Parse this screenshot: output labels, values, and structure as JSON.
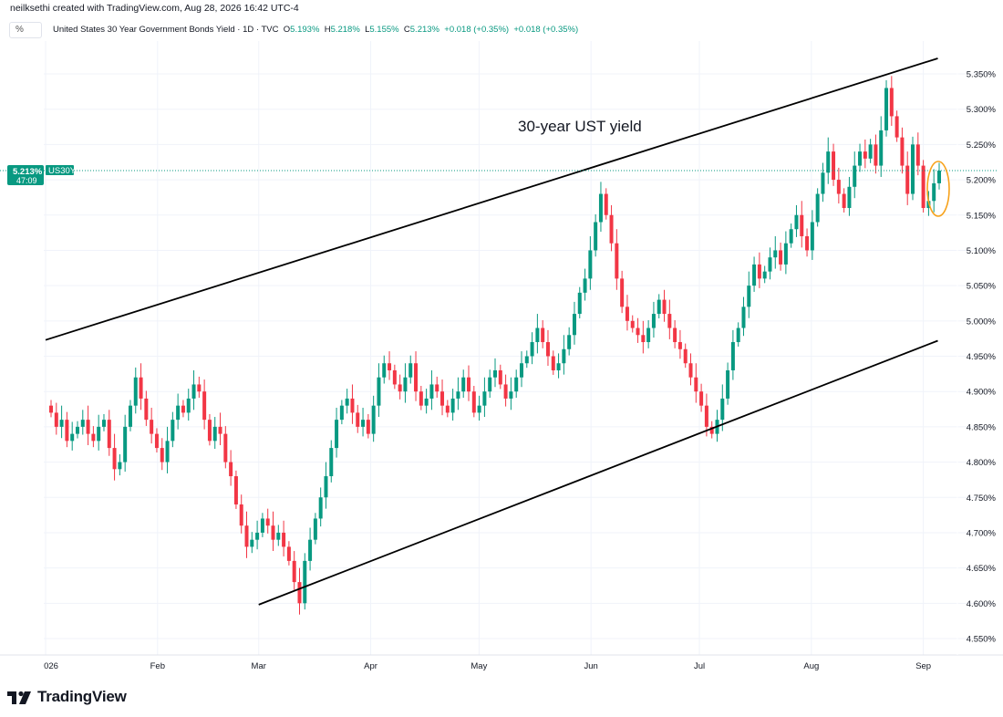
{
  "header": {
    "created_by": "neilksethi created with TradingView.com, Aug 28, 2026 16:42 UTC-4",
    "scale_button": "%",
    "symbol_title": "United States 30 Year Government Bonds Yield · 1D · TVC",
    "ohlc": {
      "open_label": "O",
      "open": "5.193%",
      "high_label": "H",
      "high": "5.218%",
      "low_label": "L",
      "low": "5.155%",
      "close_label": "C",
      "close": "5.213%",
      "change1": "+0.018 (+0.35%)",
      "change2": "+0.018 (+0.35%)"
    }
  },
  "price_tag": {
    "value": "5.213%",
    "countdown": "47:09",
    "symbol": "US30Y"
  },
  "annotation": "30-year UST yield",
  "footer": {
    "brand": "TradingView"
  },
  "colors": {
    "up": "#089981",
    "down": "#f23645",
    "channel": "#000000",
    "marker": "#f7a21b"
  },
  "chart_data": {
    "type": "candlestick",
    "title": "United States 30 Year Government Bonds Yield",
    "x_tick_labels": [
      "026",
      "Feb",
      "Mar",
      "Apr",
      "May",
      "Jun",
      "Jul",
      "Aug",
      "Sep"
    ],
    "y_tick_labels": [
      "5.350%",
      "5.300%",
      "5.250%",
      "5.200%",
      "5.150%",
      "5.100%",
      "5.050%",
      "5.000%",
      "4.950%",
      "4.900%",
      "4.850%",
      "4.800%",
      "4.750%",
      "4.700%",
      "4.650%",
      "4.600%",
      "4.550%"
    ],
    "ylim": [
      4.53,
      5.375
    ],
    "last_value": 5.213,
    "channel_lines": [
      {
        "from": [
          "2026-01-01",
          4.973
        ],
        "to": [
          "2026-09-05",
          5.372
        ]
      },
      {
        "from": [
          "2026-03-01",
          4.598
        ],
        "to": [
          "2026-09-05",
          4.972
        ]
      }
    ],
    "closes": [
      4.87,
      4.85,
      4.86,
      4.83,
      4.84,
      4.85,
      4.86,
      4.84,
      4.83,
      4.85,
      4.86,
      4.82,
      4.79,
      4.8,
      4.85,
      4.88,
      4.92,
      4.89,
      4.86,
      4.84,
      4.82,
      4.8,
      4.83,
      4.86,
      4.88,
      4.87,
      4.89,
      4.91,
      4.9,
      4.86,
      4.83,
      4.85,
      4.84,
      4.8,
      4.78,
      4.74,
      4.71,
      4.68,
      4.69,
      4.7,
      4.72,
      4.71,
      4.69,
      4.7,
      4.68,
      4.66,
      4.63,
      4.6,
      4.66,
      4.69,
      4.72,
      4.75,
      4.78,
      4.82,
      4.86,
      4.88,
      4.89,
      4.87,
      4.85,
      4.86,
      4.84,
      4.88,
      4.92,
      4.94,
      4.93,
      4.91,
      4.9,
      4.92,
      4.94,
      4.9,
      4.88,
      4.89,
      4.91,
      4.9,
      4.88,
      4.87,
      4.89,
      4.9,
      4.92,
      4.9,
      4.87,
      4.88,
      4.9,
      4.92,
      4.93,
      4.91,
      4.89,
      4.9,
      4.92,
      4.94,
      4.95,
      4.97,
      4.99,
      4.97,
      4.95,
      4.93,
      4.94,
      4.96,
      4.98,
      5.01,
      5.04,
      5.06,
      5.1,
      5.14,
      5.18,
      5.15,
      5.11,
      5.06,
      5.02,
      5.0,
      4.99,
      4.98,
      4.97,
      4.99,
      5.01,
      5.03,
      5.01,
      4.99,
      4.97,
      4.96,
      4.94,
      4.92,
      4.9,
      4.88,
      4.85,
      4.84,
      4.86,
      4.89,
      4.93,
      4.97,
      4.99,
      5.02,
      5.05,
      5.08,
      5.06,
      5.07,
      5.09,
      5.1,
      5.08,
      5.11,
      5.13,
      5.15,
      5.12,
      5.1,
      5.14,
      5.18,
      5.21,
      5.24,
      5.2,
      5.18,
      5.16,
      5.19,
      5.22,
      5.24,
      5.23,
      5.25,
      5.22,
      5.27,
      5.33,
      5.29,
      5.26,
      5.22,
      5.18,
      5.25,
      5.22,
      5.16,
      5.17,
      5.195,
      5.213
    ]
  }
}
